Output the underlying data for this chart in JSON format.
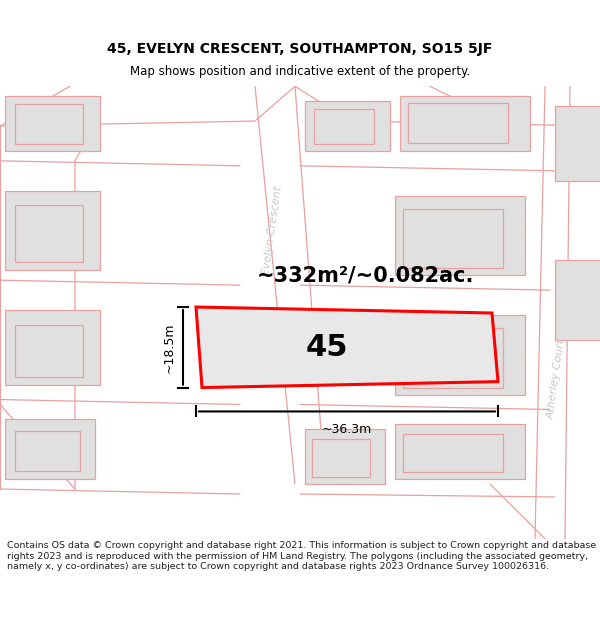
{
  "title_line1": "45, EVELYN CRESCENT, SOUTHAMPTON, SO15 5JF",
  "title_line2": "Map shows position and indicative extent of the property.",
  "area_label": "~332m²/~0.082ac.",
  "dim_width": "~36.3m",
  "dim_height": "~18.5m",
  "plot_number": "45",
  "street_label_left": "Evelyn Crescent",
  "street_label_right": "Atherley Court",
  "copyright_text": "Contains OS data © Crown copyright and database right 2021. This information is subject to Crown copyright and database rights 2023 and is reproduced with the permission of HM Land Registry. The polygons (including the associated geometry, namely x, y co-ordinates) are subject to Crown copyright and database rights 2023 Ordnance Survey 100026316.",
  "bg_color": "#ffffff",
  "map_bg": "#f5f5f5",
  "building_fill": "#e0e0e0",
  "building_edge": "#e8a0a0",
  "plot_outline": "#ff0000",
  "plot_fill": "#e8e8e8",
  "road_fill": "#ffffff",
  "dim_color": "#000000",
  "title_color": "#000000",
  "street_color": "#c8c8c8",
  "footer_color": "#222222",
  "title_fs": 10,
  "subtitle_fs": 8.5,
  "area_fs": 15,
  "plot_num_fs": 22,
  "dim_fs": 9,
  "street_fs": 8,
  "footer_fs": 6.8
}
